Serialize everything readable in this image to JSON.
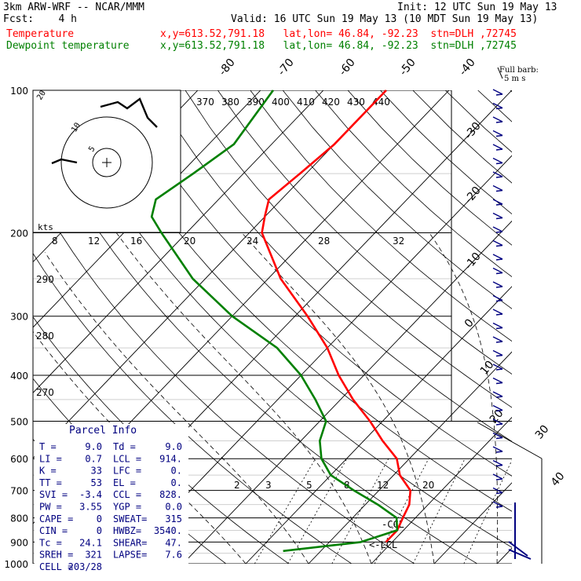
{
  "header": {
    "model": "3km ARW-WRF -- NCAR/MMM",
    "init": "Init: 12 UTC Sun 19 May 13",
    "fcst": "Fcst:    4 h",
    "valid": "Valid: 16 UTC Sun 19 May 13 (10 MDT Sun 19 May 13)",
    "series": [
      {
        "label": "Temperature",
        "info": "x,y=613.52,791.18   lat,lon= 46.84, -92.23  stn=DLH ,72745",
        "color": "#ff0000"
      },
      {
        "label": "Dewpoint temperature",
        "info": "x,y=613.52,791.18   lat,lon= 46.84, -92.23  stn=DLH ,72745",
        "color": "#008000"
      }
    ]
  },
  "barb_label": "Full barb:",
  "barb_unit": "5 m s",
  "kts_label": "kts",
  "parcel_info": {
    "title": "Parcel Info",
    "rows": [
      [
        "T  =",
        "9.0",
        "Td =",
        "9.0"
      ],
      [
        "LI =",
        "0.7",
        "LCL =",
        "914."
      ],
      [
        "K  =",
        "33",
        "LFC =",
        "0."
      ],
      [
        "TT =",
        "53",
        "EL  =",
        "0."
      ],
      [
        "SVI =",
        "-3.4",
        "CCL =",
        "828."
      ],
      [
        "PW =",
        "3.55",
        "YGP =",
        "0.0"
      ],
      [
        "CAPE =",
        "0",
        "SWEAT=",
        "315"
      ],
      [
        "CIN =",
        "0",
        "HWBZ=",
        "3540."
      ],
      [
        "Tc =",
        "24.1",
        "SHEAR=",
        "47."
      ],
      [
        "SREH =",
        "321",
        "LAPSE=",
        "7.6"
      ],
      [
        "CELL =",
        "203/28",
        "",
        ""
      ]
    ]
  },
  "chart_data": {
    "type": "line",
    "title": "",
    "ylabel": "",
    "y_ticks_hPa": [
      100,
      200,
      300,
      400,
      500,
      600,
      700,
      800,
      900,
      1000
    ],
    "isotherm_labels": [
      "-80",
      "-70",
      "-60",
      "-50",
      "-40",
      "-30",
      "-20",
      "-10",
      "0",
      "10",
      "20",
      "30",
      "40"
    ],
    "theta_labels": [
      "370",
      "380",
      "390",
      "400",
      "410",
      "420",
      "430",
      "440"
    ],
    "theta_left_labels": [
      "290",
      "280",
      "270"
    ],
    "mixing_ratio_labels": [
      "2",
      "3",
      "5",
      "8",
      "12",
      "20"
    ],
    "hodograph_speed_labels": [
      "8",
      "12",
      "16",
      "20",
      "24",
      "28",
      "32"
    ],
    "level_labels": [
      "-CCL",
      "<-LCL"
    ],
    "series": [
      {
        "name": "Temperature",
        "color": "#ff0000",
        "points": [
          {
            "p": 100,
            "t": -60
          },
          {
            "p": 130,
            "t": -60
          },
          {
            "p": 150,
            "t": -61
          },
          {
            "p": 170,
            "t": -62
          },
          {
            "p": 185,
            "t": -60
          },
          {
            "p": 200,
            "t": -58
          },
          {
            "p": 250,
            "t": -48
          },
          {
            "p": 300,
            "t": -38
          },
          {
            "p": 350,
            "t": -30
          },
          {
            "p": 400,
            "t": -24
          },
          {
            "p": 450,
            "t": -18
          },
          {
            "p": 500,
            "t": -12
          },
          {
            "p": 550,
            "t": -7
          },
          {
            "p": 600,
            "t": -2
          },
          {
            "p": 650,
            "t": 1
          },
          {
            "p": 700,
            "t": 5
          },
          {
            "p": 750,
            "t": 7
          },
          {
            "p": 800,
            "t": 8
          },
          {
            "p": 850,
            "t": 9
          },
          {
            "p": 900,
            "t": 9
          }
        ]
      },
      {
        "name": "Dewpoint temperature",
        "color": "#008000",
        "points": [
          {
            "p": 100,
            "t": -78
          },
          {
            "p": 130,
            "t": -76
          },
          {
            "p": 150,
            "t": -78
          },
          {
            "p": 170,
            "t": -80
          },
          {
            "p": 185,
            "t": -78
          },
          {
            "p": 200,
            "t": -74
          },
          {
            "p": 250,
            "t": -62
          },
          {
            "p": 300,
            "t": -50
          },
          {
            "p": 350,
            "t": -38
          },
          {
            "p": 400,
            "t": -30
          },
          {
            "p": 450,
            "t": -24
          },
          {
            "p": 500,
            "t": -19
          },
          {
            "p": 550,
            "t": -17
          },
          {
            "p": 600,
            "t": -14
          },
          {
            "p": 650,
            "t": -10
          },
          {
            "p": 700,
            "t": -4
          },
          {
            "p": 750,
            "t": 2
          },
          {
            "p": 800,
            "t": 7
          },
          {
            "p": 850,
            "t": 9
          },
          {
            "p": 900,
            "t": 5
          },
          {
            "p": 940,
            "t": -6
          }
        ]
      }
    ]
  }
}
